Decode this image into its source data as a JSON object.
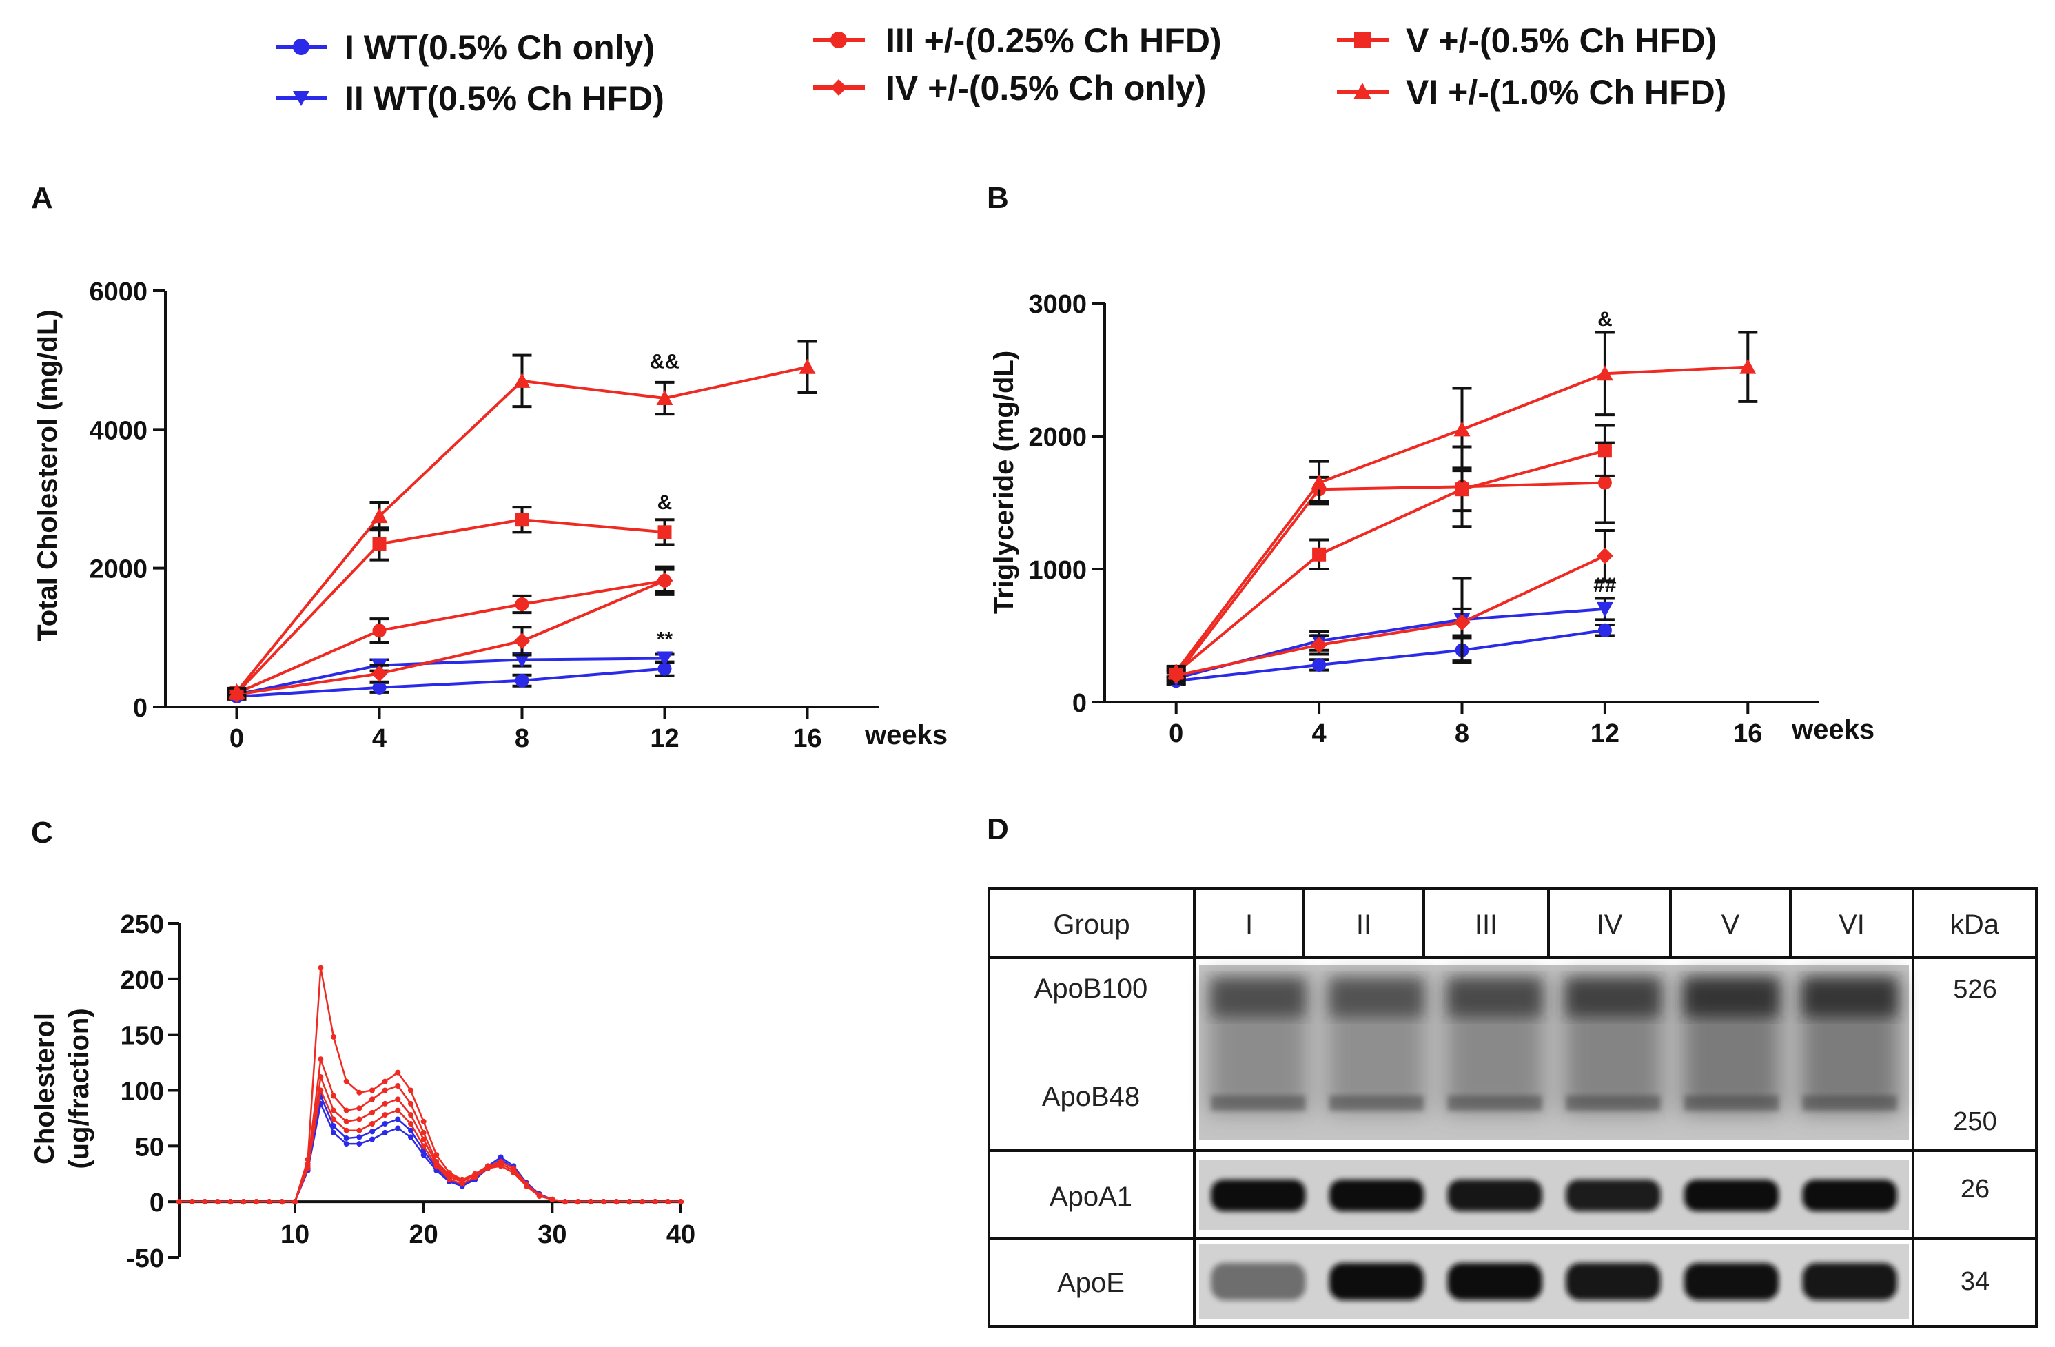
{
  "legend": {
    "items": [
      {
        "label": "I WT(0.5% Ch only)",
        "color": "#2a2ae8",
        "marker": "circle"
      },
      {
        "label": "II WT(0.5% Ch HFD)",
        "color": "#2a2ae8",
        "marker": "triangle-down"
      },
      {
        "label": "III +/-(0.25% Ch HFD)",
        "color": "#ee2a22",
        "marker": "circle"
      },
      {
        "label": "IV +/-(0.5% Ch only)",
        "color": "#ee2a22",
        "marker": "diamond"
      },
      {
        "label": "V +/-(0.5% Ch HFD)",
        "color": "#ee2a22",
        "marker": "square"
      },
      {
        "label": "VI +/-(1.0% Ch HFD)",
        "color": "#ee2a22",
        "marker": "triangle-up"
      }
    ]
  },
  "panels": {
    "a_letter": "A",
    "b_letter": "B",
    "c_letter": "C",
    "d_letter": "D"
  },
  "chart_data": [
    {
      "id": "A",
      "type": "line",
      "ylabel": "Total Cholesterol (mg/dL)",
      "xlabel": "weeks",
      "ylim": [
        0,
        6000
      ],
      "yticks": [
        "0",
        "2000",
        "4000",
        "6000"
      ],
      "yticks_values": [
        0,
        2000,
        4000,
        6000
      ],
      "xlim": [
        -2,
        18
      ],
      "xticks": [
        "0",
        "4",
        "8",
        "12",
        "16"
      ],
      "xticks_values": [
        0,
        4,
        8,
        12,
        16
      ],
      "series": [
        {
          "name": "I WT(0.5% Ch only)",
          "color": "#2a2ae8",
          "marker": "circle",
          "x": [
            0,
            4,
            8,
            12
          ],
          "values": [
            150,
            280,
            380,
            550
          ],
          "err": [
            40,
            70,
            80,
            100
          ]
        },
        {
          "name": "II WT(0.5% Ch HFD)",
          "color": "#2a2ae8",
          "marker": "triangle-down",
          "x": [
            0,
            4,
            8,
            12
          ],
          "values": [
            180,
            600,
            680,
            700
          ],
          "err": [
            40,
            80,
            90,
            60
          ]
        },
        {
          "name": "III +/-(0.25% Ch HFD)",
          "color": "#ee2a22",
          "marker": "circle",
          "x": [
            0,
            4,
            8,
            12
          ],
          "values": [
            200,
            1100,
            1480,
            1820
          ],
          "err": [
            50,
            170,
            120,
            200
          ]
        },
        {
          "name": "IV +/-(0.5% Ch only)",
          "color": "#ee2a22",
          "marker": "diamond",
          "x": [
            0,
            4,
            8,
            12
          ],
          "values": [
            180,
            480,
            950,
            1820
          ],
          "err": [
            40,
            120,
            200,
            160
          ]
        },
        {
          "name": "V +/-(0.5% Ch HFD)",
          "color": "#ee2a22",
          "marker": "square",
          "x": [
            0,
            4,
            8,
            12
          ],
          "values": [
            200,
            2350,
            2700,
            2520
          ],
          "err": [
            50,
            230,
            180,
            180
          ]
        },
        {
          "name": "VI +/-(1.0% Ch HFD)",
          "color": "#ee2a22",
          "marker": "triangle-up",
          "x": [
            0,
            4,
            8,
            12,
            16
          ],
          "values": [
            220,
            2750,
            4700,
            4450,
            4900
          ],
          "err": [
            50,
            200,
            370,
            230,
            370
          ]
        }
      ],
      "annotations": [
        {
          "text": "&&",
          "x": 12,
          "y": 4880
        },
        {
          "text": "&",
          "x": 12,
          "y": 2850
        },
        {
          "text": "**",
          "x": 12,
          "y": 880
        }
      ]
    },
    {
      "id": "B",
      "type": "line",
      "ylabel": "Triglyceride (mg/dL)",
      "xlabel": "weeks",
      "ylim": [
        0,
        3000
      ],
      "yticks": [
        "0",
        "1000",
        "2000",
        "3000"
      ],
      "yticks_values": [
        0,
        1000,
        2000,
        3000
      ],
      "xlim": [
        -2,
        18
      ],
      "xticks": [
        "0",
        "4",
        "8",
        "12",
        "16"
      ],
      "xticks_values": [
        0,
        4,
        8,
        12,
        16
      ],
      "series": [
        {
          "name": "I WT(0.5% Ch only)",
          "color": "#2a2ae8",
          "marker": "circle",
          "x": [
            0,
            4,
            8,
            12
          ],
          "values": [
            160,
            280,
            390,
            540
          ],
          "err": [
            30,
            40,
            90,
            40
          ]
        },
        {
          "name": "II WT(0.5% Ch HFD)",
          "color": "#2a2ae8",
          "marker": "triangle-down",
          "x": [
            0,
            4,
            8,
            12
          ],
          "values": [
            180,
            460,
            620,
            700
          ],
          "err": [
            40,
            70,
            310,
            80
          ]
        },
        {
          "name": "III +/-(0.25% Ch HFD)",
          "color": "#ee2a22",
          "marker": "circle",
          "x": [
            0,
            4,
            8,
            12
          ],
          "values": [
            200,
            1600,
            1620,
            1650
          ],
          "err": [
            40,
            90,
            300,
            300
          ]
        },
        {
          "name": "IV +/-(0.5% Ch only)",
          "color": "#ee2a22",
          "marker": "diamond",
          "x": [
            0,
            4,
            8,
            12
          ],
          "values": [
            200,
            430,
            600,
            1100
          ],
          "err": [
            40,
            70,
            100,
            190
          ]
        },
        {
          "name": "V +/-(0.5% Ch HFD)",
          "color": "#ee2a22",
          "marker": "square",
          "x": [
            0,
            4,
            8,
            12
          ],
          "values": [
            220,
            1110,
            1600,
            1890
          ],
          "err": [
            40,
            110,
            160,
            190
          ]
        },
        {
          "name": "VI +/-(1.0% Ch HFD)",
          "color": "#ee2a22",
          "marker": "triangle-up",
          "x": [
            0,
            4,
            8,
            12,
            16
          ],
          "values": [
            230,
            1650,
            2050,
            2470,
            2520
          ],
          "err": [
            40,
            160,
            310,
            310,
            260
          ]
        }
      ],
      "annotations": [
        {
          "text": "&",
          "x": 12,
          "y": 2830
        },
        {
          "text": "##",
          "x": 12,
          "y": 830
        }
      ]
    },
    {
      "id": "C",
      "type": "line",
      "ylabel_lines": [
        "Cholesterol",
        "(ug/fraction)"
      ],
      "xlabel": "",
      "ylim": [
        -50,
        250
      ],
      "yticks": [
        "-50",
        "0",
        "50",
        "100",
        "150",
        "200",
        "250"
      ],
      "yticks_values": [
        -50,
        0,
        50,
        100,
        150,
        200,
        250
      ],
      "xlim": [
        1,
        40
      ],
      "xticks": [
        "10",
        "20",
        "30",
        "40"
      ],
      "xticks_values": [
        10,
        20,
        30,
        40
      ],
      "x": [
        1,
        2,
        3,
        4,
        5,
        6,
        7,
        8,
        9,
        10,
        11,
        12,
        13,
        14,
        15,
        16,
        17,
        18,
        19,
        20,
        21,
        22,
        23,
        24,
        25,
        26,
        27,
        28,
        29,
        30,
        31,
        32,
        33,
        34,
        35,
        36,
        37,
        38,
        39,
        40
      ],
      "series": [
        {
          "name": "I WT(0.5% Ch only)",
          "color": "#2a2ae8",
          "values": [
            0,
            0,
            0,
            0,
            0,
            0,
            0,
            0,
            0,
            0,
            28,
            88,
            62,
            52,
            52,
            56,
            62,
            66,
            58,
            42,
            28,
            18,
            14,
            20,
            30,
            38,
            30,
            16,
            6,
            2,
            0,
            0,
            0,
            0,
            0,
            0,
            0,
            0,
            0,
            0
          ]
        },
        {
          "name": "II WT(0.5% Ch HFD)",
          "color": "#2a2ae8",
          "values": [
            0,
            0,
            0,
            0,
            0,
            0,
            0,
            0,
            0,
            0,
            30,
            95,
            68,
            57,
            58,
            63,
            70,
            74,
            64,
            46,
            30,
            20,
            15,
            22,
            32,
            40,
            32,
            17,
            7,
            2,
            0,
            0,
            0,
            0,
            0,
            0,
            0,
            0,
            0,
            0
          ]
        },
        {
          "name": "III +/-(0.25% Ch HFD)",
          "color": "#ee2a22",
          "values": [
            0,
            0,
            0,
            0,
            0,
            0,
            0,
            0,
            0,
            0,
            32,
            112,
            82,
            72,
            74,
            80,
            88,
            92,
            78,
            56,
            34,
            22,
            18,
            24,
            32,
            36,
            30,
            16,
            6,
            2,
            0,
            0,
            0,
            0,
            0,
            0,
            0,
            0,
            0,
            0
          ]
        },
        {
          "name": "IV +/-(0.5% Ch only)",
          "color": "#ee2a22",
          "values": [
            0,
            0,
            0,
            0,
            0,
            0,
            0,
            0,
            0,
            0,
            30,
            100,
            74,
            64,
            64,
            70,
            78,
            82,
            70,
            50,
            32,
            20,
            16,
            22,
            30,
            34,
            28,
            15,
            6,
            2,
            0,
            0,
            0,
            0,
            0,
            0,
            0,
            0,
            0,
            0
          ]
        },
        {
          "name": "V +/-(0.5% Ch HFD)",
          "color": "#ee2a22",
          "values": [
            0,
            0,
            0,
            0,
            0,
            0,
            0,
            0,
            0,
            0,
            34,
            128,
            95,
            82,
            84,
            92,
            100,
            104,
            88,
            62,
            36,
            24,
            19,
            25,
            32,
            34,
            28,
            15,
            6,
            2,
            0,
            0,
            0,
            0,
            0,
            0,
            0,
            0,
            0,
            0
          ]
        },
        {
          "name": "VI +/-(1.0% Ch HFD)",
          "color": "#ee2a22",
          "values": [
            0,
            0,
            0,
            0,
            0,
            0,
            0,
            0,
            0,
            0,
            38,
            210,
            148,
            108,
            98,
            100,
            108,
            116,
            100,
            72,
            42,
            26,
            20,
            25,
            30,
            32,
            26,
            14,
            5,
            2,
            0,
            0,
            0,
            0,
            0,
            0,
            0,
            0,
            0,
            0
          ]
        }
      ]
    },
    {
      "id": "D",
      "type": "table",
      "header": [
        "Group",
        "I",
        "II",
        "III",
        "IV",
        "V",
        "VI",
        "kDa"
      ],
      "rows": [
        {
          "label": "ApoB100",
          "label2": "ApoB48",
          "kda": "526",
          "kda2": "250",
          "intensity": [
            0.55,
            0.5,
            0.6,
            0.72,
            0.9,
            0.88
          ]
        },
        {
          "label": "ApoA1",
          "kda": "26",
          "intensity": [
            1,
            1,
            0.95,
            0.92,
            1,
            1
          ]
        },
        {
          "label": "ApoE",
          "kda": "34",
          "intensity": [
            0.5,
            1,
            1,
            0.95,
            0.98,
            0.95
          ]
        }
      ]
    }
  ]
}
